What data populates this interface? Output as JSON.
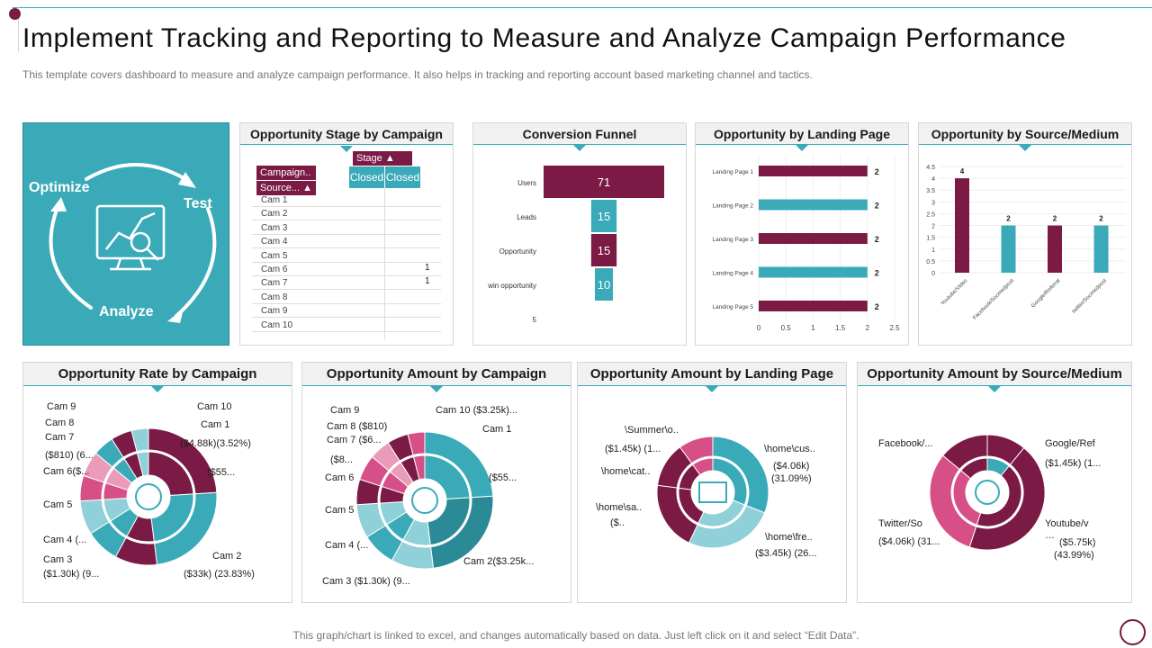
{
  "header": {
    "title": "Implement Tracking and Reporting to Measure and Analyze Campaign Performance",
    "subtitle": "This template covers dashboard to measure and analyze campaign performance. It also helps in tracking and reporting account based marketing channel and tactics."
  },
  "footer": "This graph/chart is linked to excel,  and changes automatically based on data. Just left click on it and select “Edit Data”.",
  "hero": {
    "optimize": "Optimize",
    "test": "Test",
    "analyze": "Analyze"
  },
  "colors": {
    "maroon": "#7a1a45",
    "teal": "#3aaab9",
    "pink": "#d64f86"
  },
  "chart_data": [
    {
      "id": "opp-stage",
      "type": "table",
      "title": "Opportunity Stage by Campaign",
      "row_fields": [
        "Campaign..",
        "Source..."
      ],
      "column_field": "Stage",
      "columns": [
        "Closed",
        "Closed"
      ],
      "rows": [
        "Cam 1",
        "Cam 2",
        "Cam 3",
        "Cam 4",
        "Cam 5",
        "Cam 6",
        "Cam 7",
        "Cam 8",
        "Cam 9",
        "Cam 10"
      ],
      "values": {
        "Cam 6": "1",
        "Cam 7": "1"
      }
    },
    {
      "id": "funnel",
      "type": "bar",
      "title": "Conversion Funnel",
      "categories": [
        "Users",
        "Leads",
        "Opportunity",
        "win opportunity"
      ],
      "values": [
        71,
        15,
        15,
        10
      ],
      "extra_label": "5"
    },
    {
      "id": "landing",
      "type": "bar",
      "title": "Opportunity by Landing Page",
      "categories": [
        "Landing Page  1",
        "Landing Page  2",
        "Landing Page  3",
        "Landing Page  4",
        "Landing Page  5"
      ],
      "values": [
        2,
        2,
        2,
        2,
        2
      ],
      "xticks": [
        "0",
        "0.5",
        "1",
        "1.5",
        "2",
        "2.5"
      ],
      "xlim": [
        0,
        2.5
      ]
    },
    {
      "id": "source",
      "type": "bar",
      "title": "Opportunity by Source/Medium",
      "categories": [
        "Youtube/Video",
        "Facebook/Socmedpost",
        "Google/Referral",
        "twitter/Socmedpost"
      ],
      "values": [
        4,
        2,
        2,
        2
      ],
      "yticks": [
        "0",
        "0.5",
        "1",
        "1.5",
        "2",
        "2.5",
        "3",
        "3.5",
        "4",
        "4.5"
      ],
      "ylim": [
        0,
        4.5
      ]
    },
    {
      "id": "rate",
      "type": "pie",
      "title": "Opportunity Rate by Campaign",
      "labels": [
        "Cam 9",
        "Cam 10",
        "Cam 8",
        "Cam 1",
        "Cam 7",
        "($4.88k)(3.52%)",
        "($810) (6...",
        "($55...",
        "Cam 6($...",
        "Cam 5",
        "Cam 4 (...",
        "Cam 2",
        "Cam 3",
        "($33k) (23.83%)",
        "($1.30k) (9..."
      ]
    },
    {
      "id": "amount",
      "type": "pie",
      "title": "Opportunity Amount  by Campaign",
      "labels": [
        "Cam 9",
        "Cam 10 ($3.25k)...",
        "Cam 8 ($810)",
        "Cam 1",
        "Cam 7 ($6...",
        "($8...",
        "($55...",
        "Cam 6",
        "Cam 5",
        "Cam 4 (...",
        "Cam 2($3.25k...",
        "Cam 3 ($1.30k) (9..."
      ]
    },
    {
      "id": "amount-landing",
      "type": "pie",
      "title": "Opportunity Amount by Landing Page",
      "labels": [
        "\\Summer\\o..",
        "($1.45k) (1...",
        "\\home\\cus..",
        "\\home\\cat..",
        "($4.06k)",
        "(31.09%)",
        "\\home\\sa..",
        "($..",
        "\\home\\fre..",
        "($3.45k) (26..."
      ]
    },
    {
      "id": "amount-source",
      "type": "pie",
      "title": "Opportunity Amount by Source/Medium",
      "labels": [
        "Facebook/...",
        "Google/Ref",
        "($1.45k) (1...",
        "Twitter/So",
        "Youtube/v",
        "($4.06k) (31...",
        "…",
        "($5.75k)",
        "(43.99%)"
      ]
    }
  ]
}
